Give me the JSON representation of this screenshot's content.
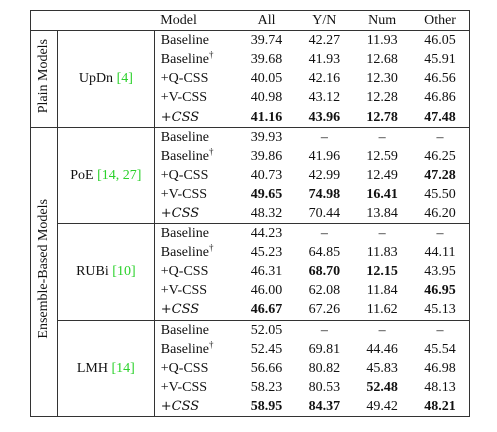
{
  "table": {
    "header": [
      "Model",
      "All",
      "Y/N",
      "Num",
      "Other"
    ],
    "groups": [
      {
        "label": "Plain Models",
        "methods": [
          {
            "name": "UpDn",
            "cite": "[4]",
            "rows": [
              {
                "model": "Baseline",
                "values": [
                  "39.74",
                  "42.27",
                  "11.93",
                  "46.05"
                ],
                "bold": []
              },
              {
                "model": "Baseline",
                "mark": "†",
                "values": [
                  "39.68",
                  "41.93",
                  "12.68",
                  "45.91"
                ],
                "bold": []
              },
              {
                "model": "+Q-CSS",
                "values": [
                  "40.05",
                  "42.16",
                  "12.30",
                  "46.56"
                ],
                "bold": []
              },
              {
                "model": "+V-CSS",
                "values": [
                  "40.98",
                  "43.12",
                  "12.28",
                  "46.86"
                ],
                "bold": []
              },
              {
                "model": "+CSS",
                "italic": true,
                "values": [
                  "41.16",
                  "43.96",
                  "12.78",
                  "47.48"
                ],
                "bold": [
                  0,
                  1,
                  2,
                  3
                ]
              }
            ]
          }
        ]
      },
      {
        "label": "Ensemble-Based Models",
        "methods": [
          {
            "name": "PoE",
            "cite": "[14, 27]",
            "rows": [
              {
                "model": "Baseline",
                "values": [
                  "39.93",
                  "–",
                  "–",
                  "–"
                ],
                "bold": []
              },
              {
                "model": "Baseline",
                "mark": "†",
                "values": [
                  "39.86",
                  "41.96",
                  "12.59",
                  "46.25"
                ],
                "bold": []
              },
              {
                "model": "+Q-CSS",
                "values": [
                  "40.73",
                  "42.99",
                  "12.49",
                  "47.28"
                ],
                "bold": [
                  3
                ]
              },
              {
                "model": "+V-CSS",
                "values": [
                  "49.65",
                  "74.98",
                  "16.41",
                  "45.50"
                ],
                "bold": [
                  0,
                  1,
                  2
                ]
              },
              {
                "model": "+CSS",
                "italic": true,
                "values": [
                  "48.32",
                  "70.44",
                  "13.84",
                  "46.20"
                ],
                "bold": []
              }
            ]
          },
          {
            "name": "RUBi",
            "cite": "[10]",
            "rows": [
              {
                "model": "Baseline",
                "values": [
                  "44.23",
                  "–",
                  "–",
                  "–"
                ],
                "bold": []
              },
              {
                "model": "Baseline",
                "mark": "†",
                "values": [
                  "45.23",
                  "64.85",
                  "11.83",
                  "44.11"
                ],
                "bold": []
              },
              {
                "model": "+Q-CSS",
                "values": [
                  "46.31",
                  "68.70",
                  "12.15",
                  "43.95"
                ],
                "bold": [
                  1,
                  2
                ]
              },
              {
                "model": "+V-CSS",
                "values": [
                  "46.00",
                  "62.08",
                  "11.84",
                  "46.95"
                ],
                "bold": [
                  3
                ]
              },
              {
                "model": "+CSS",
                "italic": true,
                "values": [
                  "46.67",
                  "67.26",
                  "11.62",
                  "45.13"
                ],
                "bold": [
                  0
                ]
              }
            ]
          },
          {
            "name": "LMH",
            "cite": "[14]",
            "rows": [
              {
                "model": "Baseline",
                "values": [
                  "52.05",
                  "–",
                  "–",
                  "–"
                ],
                "bold": []
              },
              {
                "model": "Baseline",
                "mark": "†",
                "values": [
                  "52.45",
                  "69.81",
                  "44.46",
                  "45.54"
                ],
                "bold": []
              },
              {
                "model": "+Q-CSS",
                "values": [
                  "56.66",
                  "80.82",
                  "45.83",
                  "46.98"
                ],
                "bold": []
              },
              {
                "model": "+V-CSS",
                "values": [
                  "58.23",
                  "80.53",
                  "52.48",
                  "48.13"
                ],
                "bold": [
                  2
                ]
              },
              {
                "model": "+CSS",
                "italic": true,
                "values": [
                  "58.95",
                  "84.37",
                  "49.42",
                  "48.21"
                ],
                "bold": [
                  0,
                  1,
                  3
                ]
              }
            ]
          }
        ]
      }
    ]
  }
}
